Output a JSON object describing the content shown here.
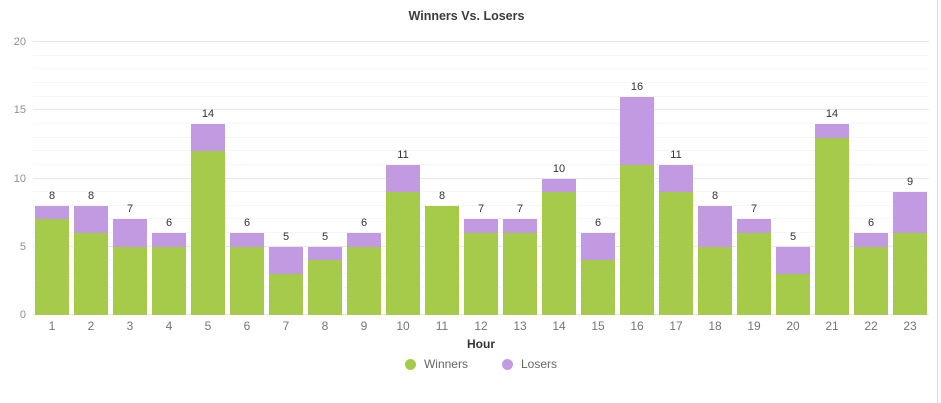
{
  "title": "Winners Vs. Losers",
  "chart_data": {
    "type": "bar",
    "stacked": true,
    "title": "Winners Vs. Losers",
    "xlabel": "Hour",
    "ylabel": "",
    "categories": [
      "1",
      "2",
      "3",
      "4",
      "5",
      "6",
      "7",
      "8",
      "9",
      "10",
      "11",
      "12",
      "13",
      "14",
      "15",
      "16",
      "17",
      "18",
      "19",
      "20",
      "21",
      "22",
      "23"
    ],
    "series": [
      {
        "name": "Winners",
        "color": "#a6cb4a",
        "values": [
          7,
          6,
          5,
          5,
          12,
          5,
          3,
          4,
          5,
          9,
          8,
          6,
          6,
          9,
          4,
          11,
          9,
          5,
          6,
          3,
          13,
          5,
          6
        ]
      },
      {
        "name": "Losers",
        "color": "#c29ae2",
        "values": [
          1,
          2,
          2,
          1,
          2,
          1,
          2,
          1,
          1,
          2,
          0,
          1,
          1,
          1,
          2,
          5,
          2,
          3,
          1,
          2,
          1,
          1,
          3
        ]
      }
    ],
    "totals": [
      8,
      8,
      7,
      6,
      14,
      6,
      5,
      5,
      6,
      11,
      8,
      7,
      7,
      10,
      6,
      16,
      11,
      8,
      7,
      5,
      14,
      6,
      9
    ],
    "ylim": [
      0,
      20
    ],
    "yticks": [
      0,
      5,
      10,
      15,
      20
    ],
    "grid": true,
    "legend_position": "bottom"
  },
  "legend": {
    "items": [
      {
        "label": "Winners",
        "color": "#a6cb4a"
      },
      {
        "label": "Losers",
        "color": "#c29ae2"
      }
    ]
  },
  "colors": {
    "winners": "#a6cb4a",
    "losers": "#c29ae2",
    "grid_major": "#e7e7e7",
    "grid_minor": "#f5f5f5",
    "y_tick_text": "#8f8f8f",
    "x_tick_text": "#757575",
    "value_text": "#333333",
    "title_text": "#3b3b3b"
  }
}
